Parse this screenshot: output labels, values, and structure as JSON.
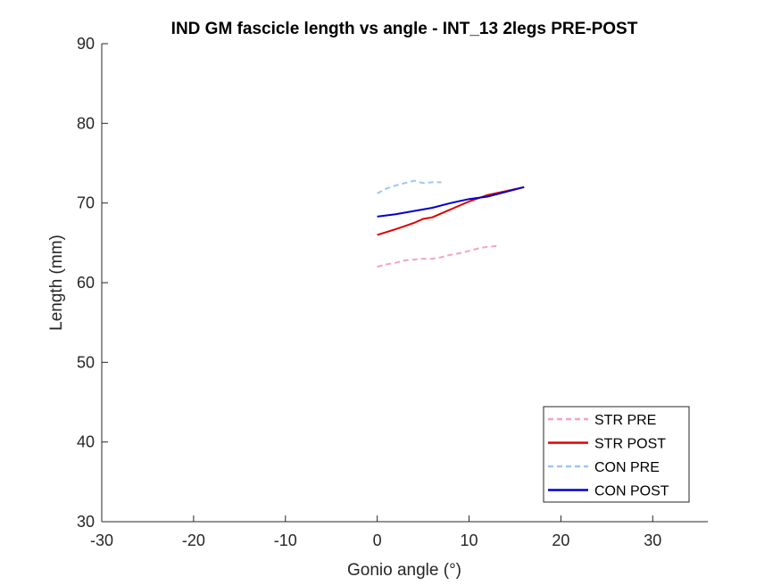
{
  "chart_data": {
    "type": "line",
    "title": "IND GM fascicle length vs angle - INT_13 2legs PRE-POST",
    "xlabel": "Gonio angle (°)",
    "ylabel": "Length (mm)",
    "xlim": [
      -30,
      36
    ],
    "ylim": [
      30,
      90
    ],
    "xticks": [
      -30,
      -20,
      -10,
      0,
      10,
      20,
      30
    ],
    "yticks": [
      30,
      40,
      50,
      60,
      70,
      80,
      90
    ],
    "xtick_labels": [
      "-30",
      "-20",
      "-10",
      "0",
      "10",
      "20",
      "30"
    ],
    "ytick_labels": [
      "30",
      "40",
      "50",
      "60",
      "70",
      "80",
      "90"
    ],
    "grid": false,
    "legend_position": "bottom-right",
    "series": [
      {
        "name": "STR PRE",
        "color": "#f4a3c4",
        "style": "dashed",
        "x": [
          0,
          1,
          2,
          3,
          4,
          5,
          6,
          7,
          8,
          9,
          10,
          11,
          12,
          13
        ],
        "y": [
          62.0,
          62.3,
          62.5,
          62.8,
          62.9,
          63.0,
          63.0,
          63.2,
          63.5,
          63.7,
          64.0,
          64.3,
          64.5,
          64.6
        ]
      },
      {
        "name": "STR POST",
        "color": "#e00000",
        "style": "solid",
        "x": [
          0,
          2,
          4,
          5,
          6,
          8,
          10,
          12,
          14,
          16
        ],
        "y": [
          66.0,
          66.7,
          67.5,
          68.0,
          68.2,
          69.2,
          70.2,
          71.0,
          71.5,
          72.0
        ]
      },
      {
        "name": "CON PRE",
        "color": "#9dc7f0",
        "style": "dashed",
        "x": [
          0,
          1,
          2,
          3,
          4,
          5,
          6,
          7
        ],
        "y": [
          71.2,
          71.8,
          72.2,
          72.5,
          72.8,
          72.5,
          72.6,
          72.6
        ]
      },
      {
        "name": "CON POST",
        "color": "#0000cc",
        "style": "solid",
        "x": [
          0,
          2,
          4,
          6,
          8,
          10,
          12,
          14,
          16
        ],
        "y": [
          68.3,
          68.6,
          69.0,
          69.4,
          70.0,
          70.5,
          70.8,
          71.4,
          72.0
        ]
      }
    ]
  }
}
